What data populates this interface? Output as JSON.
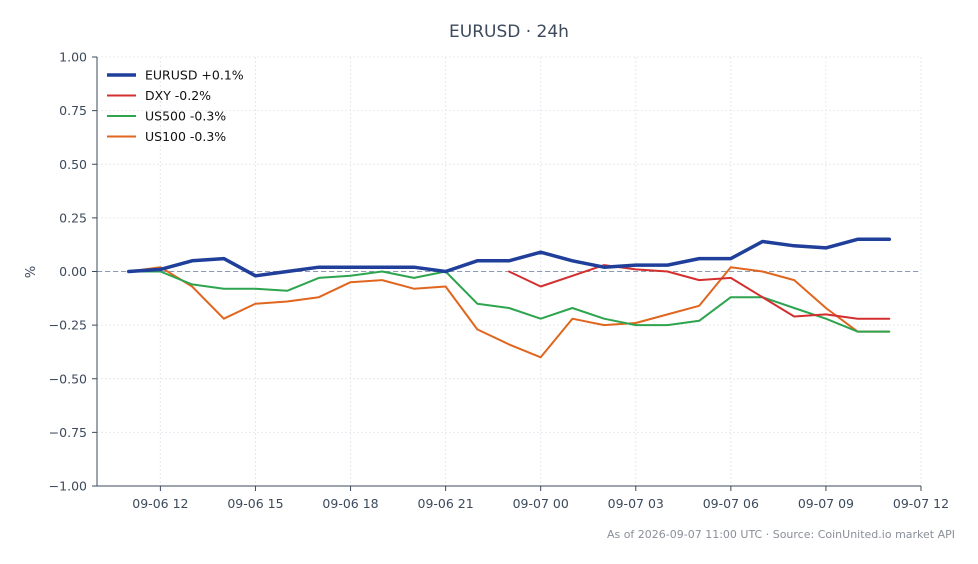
{
  "chart_data": {
    "type": "line",
    "title": "EURUSD · 24h",
    "xlabel": "",
    "ylabel": "%",
    "ylim": [
      -1.0,
      1.0
    ],
    "grid": true,
    "legend_placement": "top-left",
    "zero_line": {
      "y": 0,
      "style": "dashed",
      "color": "#8a9bb3"
    },
    "xlim": [
      "2026-09-06 10:00",
      "2026-09-07 12:00"
    ],
    "x_ticks": [
      {
        "x": "2026-09-06 12:00",
        "label": "09-06 12"
      },
      {
        "x": "2026-09-06 15:00",
        "label": "09-06 15"
      },
      {
        "x": "2026-09-06 18:00",
        "label": "09-06 18"
      },
      {
        "x": "2026-09-06 21:00",
        "label": "09-06 21"
      },
      {
        "x": "2026-09-07 00:00",
        "label": "09-07 00"
      },
      {
        "x": "2026-09-07 03:00",
        "label": "09-07 03"
      },
      {
        "x": "2026-09-07 06:00",
        "label": "09-07 06"
      },
      {
        "x": "2026-09-07 09:00",
        "label": "09-07 09"
      },
      {
        "x": "2026-09-07 12:00",
        "label": "09-07 12"
      }
    ],
    "y_ticks": [
      {
        "y": 1.0,
        "label": "1.00"
      },
      {
        "y": 0.75,
        "label": "0.75"
      },
      {
        "y": 0.5,
        "label": "0.50"
      },
      {
        "y": 0.25,
        "label": "0.25"
      },
      {
        "y": 0.0,
        "label": "0.00"
      },
      {
        "y": -0.25,
        "label": "−0.25"
      },
      {
        "y": -0.5,
        "label": "−0.50"
      },
      {
        "y": -0.75,
        "label": "−0.75"
      },
      {
        "y": -1.0,
        "label": "−1.00"
      }
    ],
    "series": [
      {
        "name": "EURUSD +0.1%",
        "color": "#1f3f9a",
        "width": 3.5,
        "points": [
          {
            "x": "2026-09-06 11:00",
            "y": 0.0
          },
          {
            "x": "2026-09-06 12:00",
            "y": 0.01
          },
          {
            "x": "2026-09-06 13:00",
            "y": 0.05
          },
          {
            "x": "2026-09-06 14:00",
            "y": 0.06
          },
          {
            "x": "2026-09-06 15:00",
            "y": -0.02
          },
          {
            "x": "2026-09-06 16:00",
            "y": 0.0
          },
          {
            "x": "2026-09-06 17:00",
            "y": 0.02
          },
          {
            "x": "2026-09-06 18:00",
            "y": 0.02
          },
          {
            "x": "2026-09-06 19:00",
            "y": 0.02
          },
          {
            "x": "2026-09-06 20:00",
            "y": 0.02
          },
          {
            "x": "2026-09-06 21:00",
            "y": 0.0
          },
          {
            "x": "2026-09-06 22:00",
            "y": 0.05
          },
          {
            "x": "2026-09-06 23:00",
            "y": 0.05
          },
          {
            "x": "2026-09-07 00:00",
            "y": 0.09
          },
          {
            "x": "2026-09-07 01:00",
            "y": 0.05
          },
          {
            "x": "2026-09-07 02:00",
            "y": 0.02
          },
          {
            "x": "2026-09-07 03:00",
            "y": 0.03
          },
          {
            "x": "2026-09-07 04:00",
            "y": 0.03
          },
          {
            "x": "2026-09-07 05:00",
            "y": 0.06
          },
          {
            "x": "2026-09-07 06:00",
            "y": 0.06
          },
          {
            "x": "2026-09-07 07:00",
            "y": 0.14
          },
          {
            "x": "2026-09-07 08:00",
            "y": 0.12
          },
          {
            "x": "2026-09-07 09:00",
            "y": 0.11
          },
          {
            "x": "2026-09-07 10:00",
            "y": 0.15
          },
          {
            "x": "2026-09-07 11:00",
            "y": 0.15
          }
        ]
      },
      {
        "name": "DXY -0.2%",
        "color": "#d32f2f",
        "width": 2,
        "points": [
          {
            "x": "2026-09-06 23:00",
            "y": 0.0
          },
          {
            "x": "2026-09-07 00:00",
            "y": -0.07
          },
          {
            "x": "2026-09-07 01:00",
            "y": -0.02
          },
          {
            "x": "2026-09-07 02:00",
            "y": 0.03
          },
          {
            "x": "2026-09-07 03:00",
            "y": 0.01
          },
          {
            "x": "2026-09-07 04:00",
            "y": 0.0
          },
          {
            "x": "2026-09-07 05:00",
            "y": -0.04
          },
          {
            "x": "2026-09-07 06:00",
            "y": -0.03
          },
          {
            "x": "2026-09-07 07:00",
            "y": -0.12
          },
          {
            "x": "2026-09-07 08:00",
            "y": -0.21
          },
          {
            "x": "2026-09-07 09:00",
            "y": -0.2
          },
          {
            "x": "2026-09-07 10:00",
            "y": -0.22
          },
          {
            "x": "2026-09-07 11:00",
            "y": -0.22
          }
        ]
      },
      {
        "name": "US500 -0.3%",
        "color": "#2ea44f",
        "width": 2,
        "points": [
          {
            "x": "2026-09-06 11:00",
            "y": 0.0
          },
          {
            "x": "2026-09-06 12:00",
            "y": 0.0
          },
          {
            "x": "2026-09-06 13:00",
            "y": -0.06
          },
          {
            "x": "2026-09-06 14:00",
            "y": -0.08
          },
          {
            "x": "2026-09-06 15:00",
            "y": -0.08
          },
          {
            "x": "2026-09-06 16:00",
            "y": -0.09
          },
          {
            "x": "2026-09-06 17:00",
            "y": -0.03
          },
          {
            "x": "2026-09-06 18:00",
            "y": -0.02
          },
          {
            "x": "2026-09-06 19:00",
            "y": 0.0
          },
          {
            "x": "2026-09-06 20:00",
            "y": -0.03
          },
          {
            "x": "2026-09-06 21:00",
            "y": 0.0
          },
          {
            "x": "2026-09-06 22:00",
            "y": -0.15
          },
          {
            "x": "2026-09-06 23:00",
            "y": -0.17
          },
          {
            "x": "2026-09-07 00:00",
            "y": -0.22
          },
          {
            "x": "2026-09-07 01:00",
            "y": -0.17
          },
          {
            "x": "2026-09-07 02:00",
            "y": -0.22
          },
          {
            "x": "2026-09-07 03:00",
            "y": -0.25
          },
          {
            "x": "2026-09-07 04:00",
            "y": -0.25
          },
          {
            "x": "2026-09-07 05:00",
            "y": -0.23
          },
          {
            "x": "2026-09-07 06:00",
            "y": -0.12
          },
          {
            "x": "2026-09-07 07:00",
            "y": -0.12
          },
          {
            "x": "2026-09-07 08:00",
            "y": -0.17
          },
          {
            "x": "2026-09-07 09:00",
            "y": -0.22
          },
          {
            "x": "2026-09-07 10:00",
            "y": -0.28
          },
          {
            "x": "2026-09-07 11:00",
            "y": -0.28
          }
        ]
      },
      {
        "name": "US100 -0.3%",
        "color": "#e0661f",
        "width": 2,
        "points": [
          {
            "x": "2026-09-06 11:00",
            "y": 0.0
          },
          {
            "x": "2026-09-06 12:00",
            "y": 0.02
          },
          {
            "x": "2026-09-06 13:00",
            "y": -0.07
          },
          {
            "x": "2026-09-06 14:00",
            "y": -0.22
          },
          {
            "x": "2026-09-06 15:00",
            "y": -0.15
          },
          {
            "x": "2026-09-06 16:00",
            "y": -0.14
          },
          {
            "x": "2026-09-06 17:00",
            "y": -0.12
          },
          {
            "x": "2026-09-06 18:00",
            "y": -0.05
          },
          {
            "x": "2026-09-06 19:00",
            "y": -0.04
          },
          {
            "x": "2026-09-06 20:00",
            "y": -0.08
          },
          {
            "x": "2026-09-06 21:00",
            "y": -0.07
          },
          {
            "x": "2026-09-06 22:00",
            "y": -0.27
          },
          {
            "x": "2026-09-06 23:00",
            "y": -0.34
          },
          {
            "x": "2026-09-07 00:00",
            "y": -0.4
          },
          {
            "x": "2026-09-07 01:00",
            "y": -0.22
          },
          {
            "x": "2026-09-07 02:00",
            "y": -0.25
          },
          {
            "x": "2026-09-07 03:00",
            "y": -0.24
          },
          {
            "x": "2026-09-07 04:00",
            "y": -0.2
          },
          {
            "x": "2026-09-07 05:00",
            "y": -0.16
          },
          {
            "x": "2026-09-07 06:00",
            "y": 0.02
          },
          {
            "x": "2026-09-07 07:00",
            "y": 0.0
          },
          {
            "x": "2026-09-07 08:00",
            "y": -0.04
          },
          {
            "x": "2026-09-07 09:00",
            "y": -0.17
          },
          {
            "x": "2026-09-07 10:00",
            "y": -0.28
          },
          {
            "x": "2026-09-07 11:00",
            "y": -0.28
          }
        ]
      }
    ]
  },
  "footer": "As of 2026-09-07 11:00 UTC · Source: CoinUnited.io market API"
}
